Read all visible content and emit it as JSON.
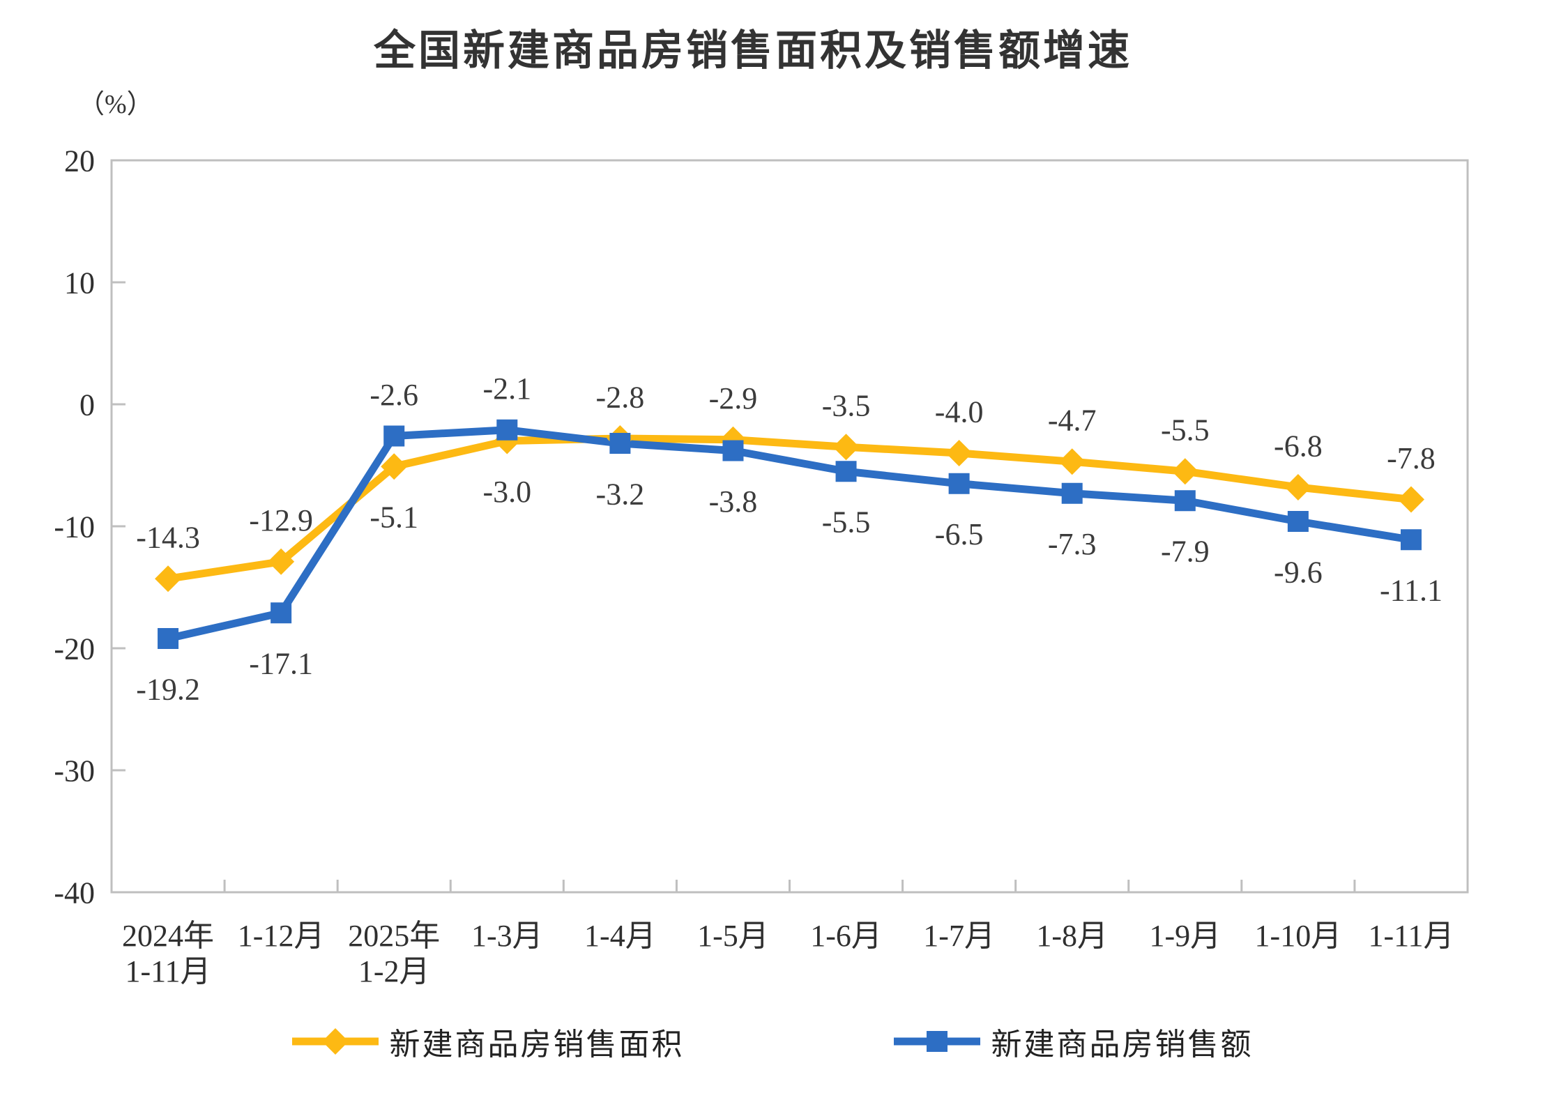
{
  "title": "全国新建商品房销售面积及销售额增速",
  "unit_label": "（%）",
  "chart_data": {
    "type": "line",
    "categories": [
      "2024年\n1-11月",
      "1-12月",
      "2025年\n1-2月",
      "1-3月",
      "1-4月",
      "1-5月",
      "1-6月",
      "1-7月",
      "1-8月",
      "1-9月",
      "1-10月",
      "1-11月"
    ],
    "series": [
      {
        "name": "新建商品房销售面积",
        "marker": "diamond",
        "color": "#FDB913",
        "values": [
          -14.3,
          -12.9,
          -5.1,
          -3.0,
          -2.8,
          -2.9,
          -3.5,
          -4.0,
          -4.7,
          -5.5,
          -6.8,
          -7.8
        ]
      },
      {
        "name": "新建商品房销售额",
        "marker": "square",
        "color": "#2D6EC4",
        "values": [
          -19.2,
          -17.1,
          -2.6,
          -2.1,
          -3.2,
          -3.8,
          -5.5,
          -6.5,
          -7.3,
          -7.9,
          -9.6,
          -11.1
        ]
      }
    ],
    "ylabel": "（%）",
    "ylim": [
      -40,
      20
    ],
    "yticks": [
      20,
      10,
      0,
      -10,
      -20,
      -30,
      -40
    ],
    "grid": false,
    "legend_position": "bottom",
    "data_labels": true,
    "axis_color": "#bfbfbf",
    "label_color": "#3b3b3b"
  }
}
